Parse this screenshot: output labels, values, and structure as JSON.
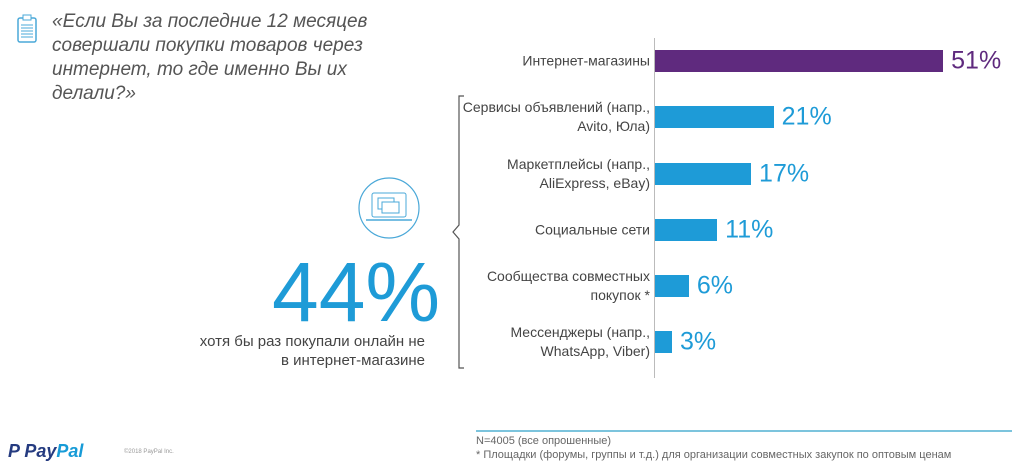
{
  "question": "«Если Вы за последние 12 месяцев совершали покупки товаров через интернет, то где именно Вы их делали?»",
  "highlight": {
    "value": "44%",
    "text": "хотя бы раз покупали онлайн не в интернет-магазине"
  },
  "chart_data": {
    "type": "bar",
    "orientation": "horizontal",
    "categories": [
      "Интернет-магазины",
      "Сервисы объявлений (напр., Avito, Юла)",
      "Маркетплейсы (напр., AliExpress, eBay)",
      "Социальные сети",
      "Сообщества совместных покупок *",
      "Мессенджеры (напр., WhatsApp, Viber)"
    ],
    "values": [
      51,
      21,
      17,
      11,
      6,
      3
    ],
    "labels": [
      "51%",
      "21%",
      "17%",
      "11%",
      "6%",
      "3%"
    ],
    "colors": [
      "#5f2a7e",
      "#1e9bd7",
      "#1e9bd7",
      "#1e9bd7",
      "#1e9bd7",
      "#1e9bd7"
    ],
    "unit": "%"
  },
  "footer": {
    "n": "N=4005 (все опрошенные)",
    "note": "* Площадки (форумы, группы и т.д.) для организации совместных закупок по оптовым ценам",
    "logo": "PayPal",
    "copyright": "©2018 PayPal Inc."
  }
}
